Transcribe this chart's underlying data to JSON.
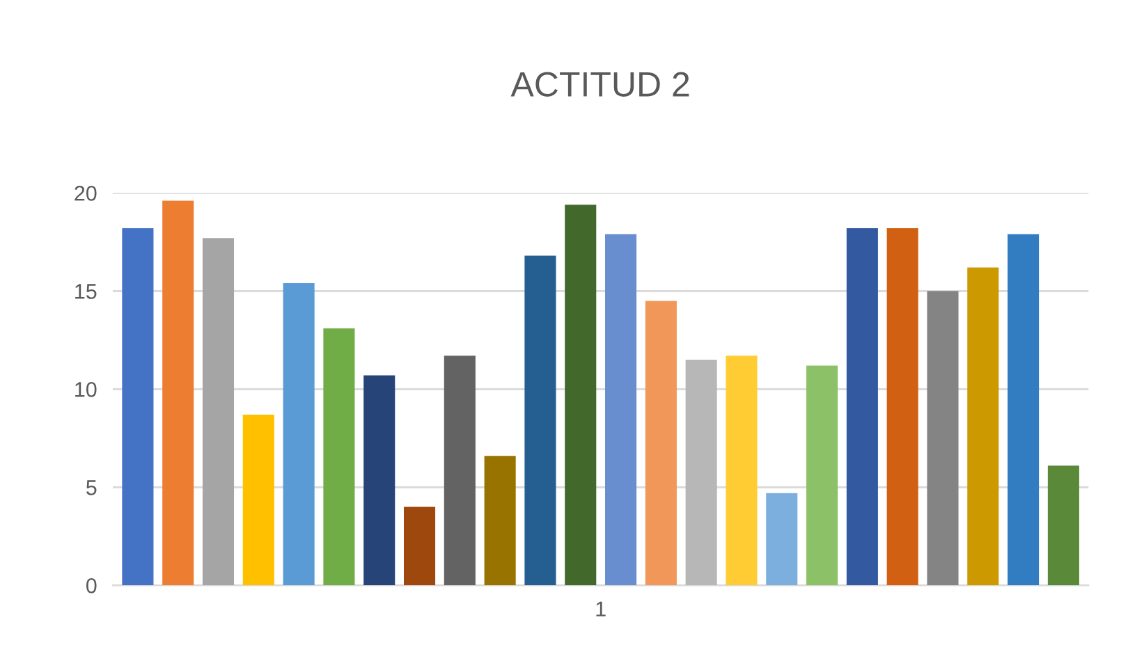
{
  "chart_data": {
    "type": "bar",
    "title": "ACTITUD 2",
    "categories": [
      "1"
    ],
    "series": [
      {
        "color": "#4472c4",
        "values": [
          18.2
        ]
      },
      {
        "color": "#ed7d31",
        "values": [
          19.6
        ]
      },
      {
        "color": "#a5a5a5",
        "values": [
          17.7
        ]
      },
      {
        "color": "#ffc000",
        "values": [
          8.7
        ]
      },
      {
        "color": "#5b9bd5",
        "values": [
          15.4
        ]
      },
      {
        "color": "#70ad47",
        "values": [
          13.1
        ]
      },
      {
        "color": "#264478",
        "values": [
          10.7
        ]
      },
      {
        "color": "#9e480e",
        "values": [
          4.0
        ]
      },
      {
        "color": "#636363",
        "values": [
          11.7
        ]
      },
      {
        "color": "#997300",
        "values": [
          6.6
        ]
      },
      {
        "color": "#255e91",
        "values": [
          16.8
        ]
      },
      {
        "color": "#43682b",
        "values": [
          19.4
        ]
      },
      {
        "color": "#698ed0",
        "values": [
          17.9
        ]
      },
      {
        "color": "#f1975a",
        "values": [
          14.5
        ]
      },
      {
        "color": "#b7b7b7",
        "values": [
          11.5
        ]
      },
      {
        "color": "#ffcd33",
        "values": [
          11.7
        ]
      },
      {
        "color": "#7cafdd",
        "values": [
          4.7
        ]
      },
      {
        "color": "#8cc168",
        "values": [
          11.2
        ]
      },
      {
        "color": "#335aa1",
        "values": [
          18.2
        ]
      },
      {
        "color": "#d26012",
        "values": [
          18.2
        ]
      },
      {
        "color": "#848484",
        "values": [
          15.0
        ]
      },
      {
        "color": "#cc9a00",
        "values": [
          16.2
        ]
      },
      {
        "color": "#327dc2",
        "values": [
          17.9
        ]
      },
      {
        "color": "#5a8a39",
        "values": [
          6.1
        ]
      }
    ],
    "ylim": [
      0,
      20
    ],
    "yticks": [
      0,
      5,
      10,
      15,
      20
    ],
    "grid": "y",
    "legend": false
  }
}
